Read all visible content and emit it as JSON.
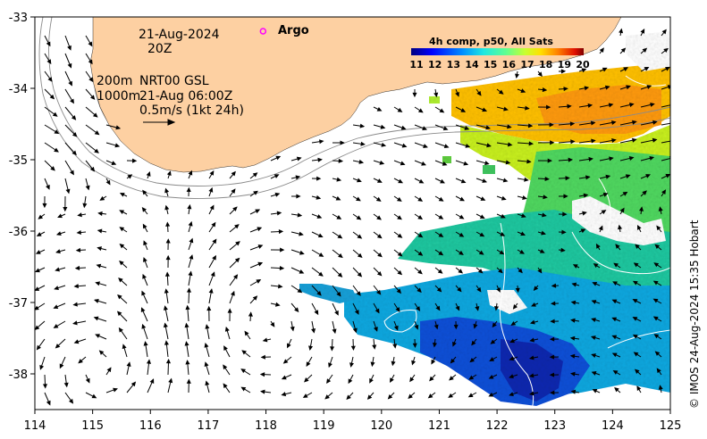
{
  "map": {
    "date": "21-Aug-2024",
    "time": "20Z",
    "depth_label_1": "200m",
    "depth_label_2": "1000m",
    "product": "NRT00 GSL",
    "product_time": "21-Aug 06:00Z",
    "scale_label": "0.5m/s (1kt 24h)",
    "argo_label": "Argo",
    "credit": "© IMOS 24-Aug-2024 15:35 Hobart",
    "land_color": "#fdd0a2",
    "argo_color": "#ff00ff"
  },
  "colorbar": {
    "title": "4h comp, p50, All Sats",
    "ticks": [
      "11",
      "12",
      "13",
      "14",
      "15",
      "16",
      "17",
      "18",
      "19",
      "20"
    ],
    "colors": [
      "#00007f",
      "#0000ff",
      "#0080ff",
      "#00dfff",
      "#40ffbf",
      "#a0ff60",
      "#ffff00",
      "#ff9f00",
      "#ff3000",
      "#7f0000"
    ]
  },
  "axes": {
    "x_ticks": [
      "114",
      "115",
      "116",
      "117",
      "118",
      "119",
      "120",
      "121",
      "122",
      "123",
      "124",
      "125"
    ],
    "y_ticks": [
      "-33",
      "-34",
      "-35",
      "-36",
      "-37",
      "-38"
    ],
    "xlim": [
      114,
      125
    ],
    "ylim": [
      -38.5,
      -33
    ]
  },
  "argo": {
    "lon": 117.95,
    "lat": -33.2
  }
}
